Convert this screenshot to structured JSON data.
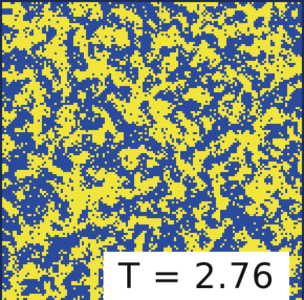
{
  "label": "T = 2.76"
}
